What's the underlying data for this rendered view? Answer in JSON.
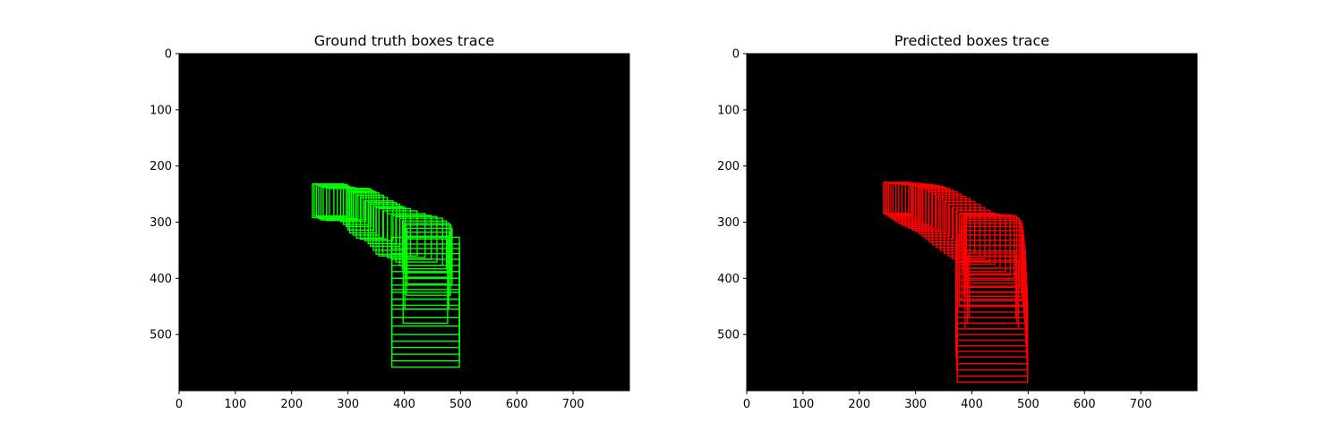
{
  "chart_data": [
    {
      "type": "box-trace",
      "title": "Ground truth boxes trace",
      "box_color": "#00ff00",
      "background": "#000000",
      "xlim": [
        0,
        800
      ],
      "ylim": [
        600,
        0
      ],
      "xticks": [
        0,
        100,
        200,
        300,
        400,
        500,
        600,
        700
      ],
      "yticks": [
        0,
        100,
        200,
        300,
        400,
        500
      ],
      "boxes": [
        [
          237,
          232,
          292,
          292
        ],
        [
          240,
          233,
          297,
          289
        ],
        [
          244,
          234,
          300,
          290
        ],
        [
          248,
          236,
          303,
          294
        ],
        [
          252,
          238,
          306,
          296
        ],
        [
          256,
          238,
          310,
          293
        ],
        [
          262,
          239,
          314,
          297
        ],
        [
          267,
          240,
          318,
          294
        ],
        [
          275,
          240,
          323,
          296
        ],
        [
          281,
          240,
          327,
          296
        ],
        [
          287,
          240,
          332,
          299
        ],
        [
          292,
          240,
          337,
          304
        ],
        [
          297,
          241,
          341,
          308
        ],
        [
          300,
          244,
          346,
          314
        ],
        [
          303,
          246,
          350,
          319
        ],
        [
          309,
          248,
          355,
          323
        ],
        [
          315,
          252,
          363,
          328
        ],
        [
          322,
          256,
          370,
          330
        ],
        [
          330,
          262,
          380,
          333
        ],
        [
          336,
          265,
          386,
          338
        ],
        [
          340,
          268,
          392,
          343
        ],
        [
          345,
          272,
          398,
          350
        ],
        [
          350,
          274,
          402,
          357
        ],
        [
          355,
          276,
          411,
          360
        ],
        [
          362,
          280,
          423,
          360
        ],
        [
          370,
          285,
          437,
          363
        ],
        [
          377,
          288,
          448,
          366
        ],
        [
          385,
          290,
          458,
          371
        ],
        [
          392,
          293,
          468,
          377
        ],
        [
          397,
          298,
          475,
          383
        ],
        [
          400,
          302,
          480,
          390
        ],
        [
          403,
          305,
          483,
          398
        ],
        [
          405,
          311,
          485,
          410
        ],
        [
          404,
          318,
          482,
          430
        ],
        [
          401,
          325,
          479,
          455
        ],
        [
          398,
          330,
          477,
          480
        ],
        [
          378,
          327,
          498,
          400
        ],
        [
          378,
          339,
          498,
          420
        ],
        [
          378,
          347,
          498,
          437
        ],
        [
          378,
          356,
          498,
          455
        ],
        [
          378,
          366,
          498,
          470
        ],
        [
          378,
          377,
          498,
          485
        ],
        [
          378,
          388,
          498,
          500
        ],
        [
          378,
          400,
          498,
          512
        ],
        [
          378,
          412,
          498,
          523
        ],
        [
          378,
          425,
          498,
          535
        ],
        [
          378,
          437,
          498,
          547
        ],
        [
          378,
          448,
          498,
          558
        ]
      ]
    },
    {
      "type": "box-trace",
      "title": "Predicted boxes trace",
      "box_color": "#ff0000",
      "background": "#000000",
      "xlim": [
        0,
        800
      ],
      "ylim": [
        600,
        0
      ],
      "xticks": [
        0,
        100,
        200,
        300,
        400,
        500,
        600,
        700
      ],
      "yticks": [
        0,
        100,
        200,
        300,
        400,
        500
      ],
      "boxes": [
        [
          243,
          229,
          288,
          284
        ],
        [
          246,
          230,
          292,
          286
        ],
        [
          249,
          230,
          296,
          288
        ],
        [
          252,
          231,
          300,
          290
        ],
        [
          256,
          231,
          304,
          293
        ],
        [
          260,
          231,
          309,
          296
        ],
        [
          265,
          232,
          313,
          299
        ],
        [
          270,
          232,
          318,
          302
        ],
        [
          276,
          233,
          323,
          305
        ],
        [
          282,
          233,
          329,
          308
        ],
        [
          288,
          234,
          335,
          311
        ],
        [
          294,
          235,
          341,
          314
        ],
        [
          300,
          236,
          348,
          317
        ],
        [
          306,
          238,
          354,
          321
        ],
        [
          312,
          240,
          360,
          325
        ],
        [
          318,
          243,
          367,
          330
        ],
        [
          324,
          246,
          374,
          335
        ],
        [
          330,
          250,
          381,
          340
        ],
        [
          337,
          254,
          389,
          345
        ],
        [
          344,
          258,
          397,
          350
        ],
        [
          351,
          263,
          405,
          355
        ],
        [
          358,
          268,
          414,
          360
        ],
        [
          365,
          274,
          423,
          365
        ],
        [
          372,
          279,
          432,
          370
        ],
        [
          378,
          284,
          441,
          375
        ],
        [
          382,
          286,
          450,
          382
        ],
        [
          385,
          287,
          460,
          388
        ],
        [
          387,
          287,
          468,
          394
        ],
        [
          389,
          288,
          475,
          400
        ],
        [
          390,
          290,
          480,
          408
        ],
        [
          390,
          293,
          484,
          416
        ],
        [
          389,
          297,
          487,
          424
        ],
        [
          386,
          302,
          489,
          432
        ],
        [
          382,
          308,
          490,
          440
        ],
        [
          378,
          315,
          491,
          450
        ],
        [
          375,
          323,
          492,
          460
        ],
        [
          373,
          332,
          493,
          470
        ],
        [
          372,
          341,
          494,
          480
        ],
        [
          372,
          351,
          495,
          490
        ],
        [
          372,
          361,
          495,
          500
        ],
        [
          372,
          371,
          496,
          510
        ],
        [
          372,
          382,
          496,
          520
        ],
        [
          372,
          392,
          497,
          530
        ],
        [
          372,
          403,
          497,
          540
        ],
        [
          373,
          414,
          498,
          552
        ],
        [
          373,
          425,
          498,
          563
        ],
        [
          374,
          437,
          499,
          574
        ],
        [
          374,
          448,
          499,
          585
        ],
        [
          395,
          355,
          478,
          470
        ],
        [
          392,
          360,
          480,
          480
        ],
        [
          388,
          368,
          483,
          490
        ]
      ]
    }
  ]
}
